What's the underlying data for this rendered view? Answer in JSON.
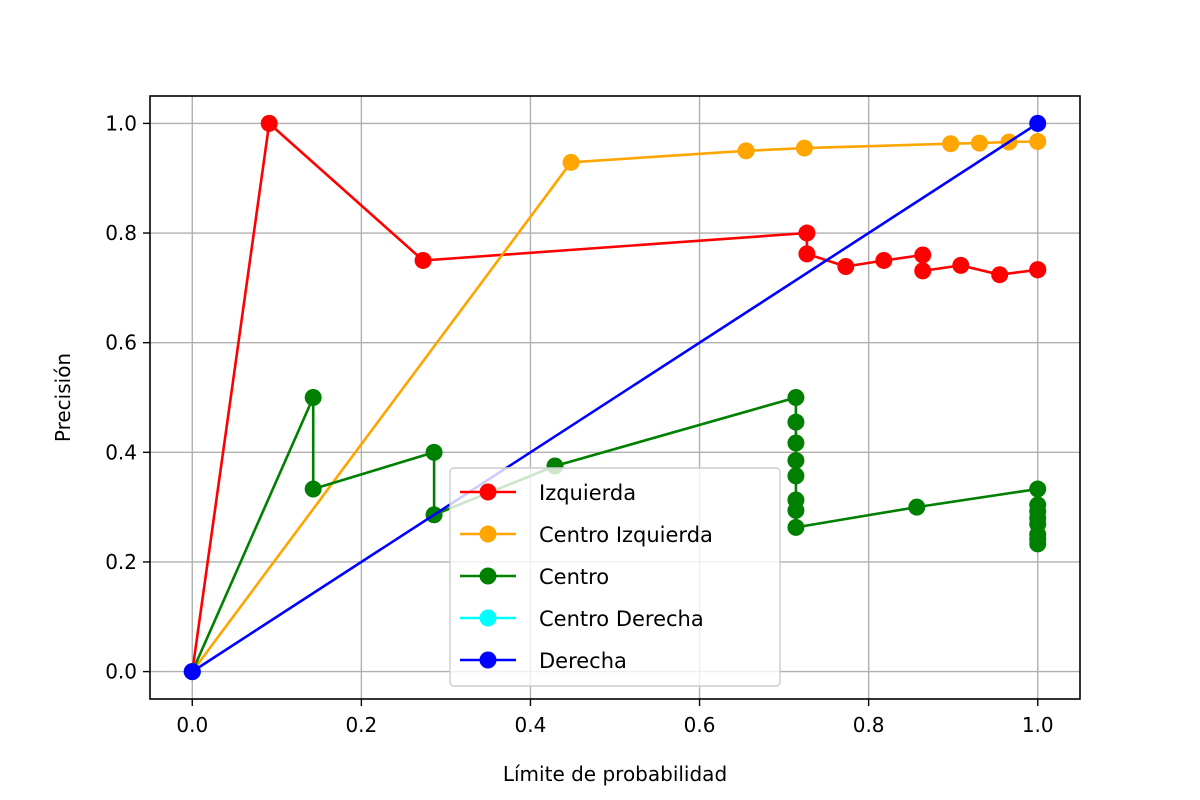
{
  "chart_data": {
    "type": "line",
    "title": "",
    "xlabel": "Límite de probabilidad",
    "ylabel": "Precisión",
    "xlim": [
      -0.05,
      1.05
    ],
    "ylim": [
      -0.05,
      1.05
    ],
    "xticks": [
      "0.0",
      "0.2",
      "0.4",
      "0.6",
      "0.8",
      "1.0"
    ],
    "yticks": [
      "0.0",
      "0.2",
      "0.4",
      "0.6",
      "0.8",
      "1.0"
    ],
    "grid": true,
    "legend_position": "lower-center",
    "series": [
      {
        "name": "Izquierda",
        "color": "#ff0000",
        "points": [
          [
            0.0,
            0.0
          ],
          [
            0.091,
            1.0
          ],
          [
            0.273,
            0.75
          ],
          [
            0.727,
            0.8
          ],
          [
            0.727,
            0.762
          ],
          [
            0.773,
            0.739
          ],
          [
            0.818,
            0.75
          ],
          [
            0.864,
            0.76
          ],
          [
            0.864,
            0.731
          ],
          [
            0.909,
            0.741
          ],
          [
            0.955,
            0.724
          ],
          [
            1.0,
            0.733
          ],
          [
            1.0,
            0.733
          ]
        ]
      },
      {
        "name": "Centro Izquierda",
        "color": "#ffa500",
        "points": [
          [
            0.0,
            0.0
          ],
          [
            0.448,
            0.929
          ],
          [
            0.655,
            0.95
          ],
          [
            0.724,
            0.955
          ],
          [
            0.897,
            0.963
          ],
          [
            0.931,
            0.964
          ],
          [
            0.966,
            0.966
          ],
          [
            1.0,
            0.967
          ]
        ]
      },
      {
        "name": "Centro",
        "color": "#008000",
        "points": [
          [
            0.0,
            0.0
          ],
          [
            0.143,
            0.5
          ],
          [
            0.143,
            0.333
          ],
          [
            0.286,
            0.4
          ],
          [
            0.286,
            0.286
          ],
          [
            0.429,
            0.375
          ],
          [
            0.714,
            0.5
          ],
          [
            0.714,
            0.455
          ],
          [
            0.714,
            0.417
          ],
          [
            0.714,
            0.385
          ],
          [
            0.714,
            0.357
          ],
          [
            0.714,
            0.313
          ],
          [
            0.714,
            0.294
          ],
          [
            0.714,
            0.263
          ],
          [
            0.857,
            0.3
          ],
          [
            1.0,
            0.333
          ],
          [
            1.0,
            0.304
          ],
          [
            1.0,
            0.292
          ],
          [
            1.0,
            0.28
          ],
          [
            1.0,
            0.269
          ],
          [
            1.0,
            0.25
          ],
          [
            1.0,
            0.241
          ],
          [
            1.0,
            0.233
          ]
        ]
      },
      {
        "name": "Centro Derecha",
        "color": "#00ffff",
        "points": [
          [
            0.0,
            0.0
          ]
        ]
      },
      {
        "name": "Derecha",
        "color": "#0000ff",
        "points": [
          [
            0.0,
            0.0
          ],
          [
            1.0,
            1.0
          ]
        ]
      }
    ]
  }
}
